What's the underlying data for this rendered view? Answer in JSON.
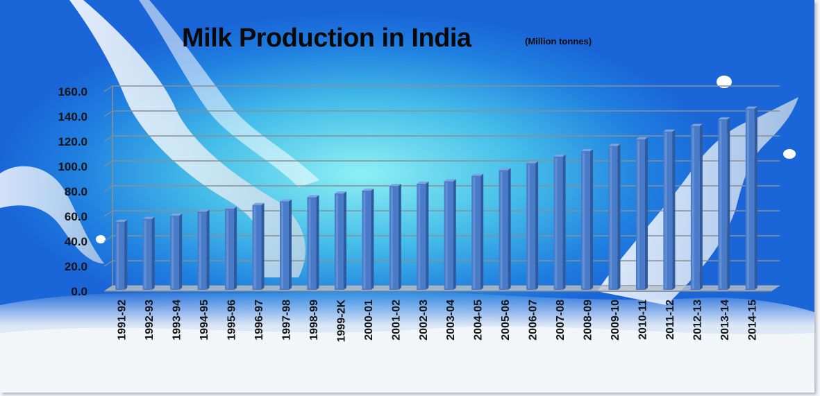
{
  "chart_data": {
    "type": "bar",
    "title": "Milk Production in India",
    "subtitle": "(Million tonnes)",
    "categories": [
      "1991-92",
      "1992-93",
      "1993-94",
      "1994-95",
      "1995-96",
      "1996-97",
      "1997-98",
      "1998-99",
      "1999-2K",
      "2000-01",
      "2001-02",
      "2002-03",
      "2003-04",
      "2004-05",
      "2005-06",
      "2006-07",
      "2007-08",
      "2008-09",
      "2009-10",
      "2010-11",
      "2011-12",
      "2012-13",
      "2013-14",
      "2014-15"
    ],
    "values": [
      55.7,
      58.0,
      60.6,
      63.8,
      66.2,
      69.1,
      72.1,
      75.4,
      78.3,
      80.6,
      84.4,
      86.2,
      88.1,
      92.5,
      97.1,
      102.6,
      107.9,
      112.2,
      116.4,
      121.8,
      127.9,
      132.4,
      137.7,
      146.3
    ],
    "y_ticks": [
      "0.0",
      "20.0",
      "40.0",
      "60.0",
      "80.0",
      "100.0",
      "120.0",
      "140.0",
      "160.0"
    ],
    "ylim": [
      0,
      160
    ],
    "grid": true,
    "legend": "none",
    "bar_color": "#4a7bc8"
  }
}
